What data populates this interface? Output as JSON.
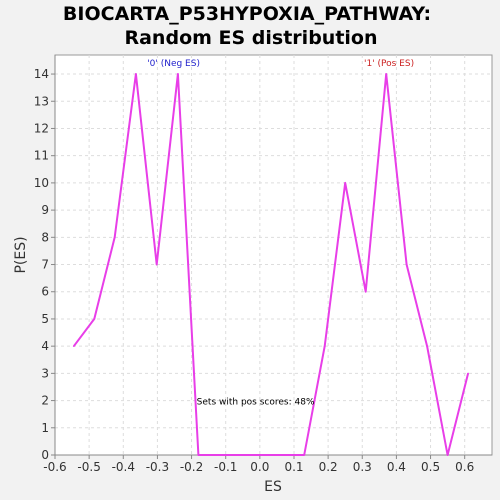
{
  "chart_data": {
    "type": "line",
    "title_line1": "BIOCARTA_P53HYPOXIA_PATHWAY:",
    "title_line2": "Random ES distribution",
    "xlabel": "ES",
    "ylabel": "P(ES)",
    "xlim": [
      -0.6,
      0.68
    ],
    "ylim": [
      0,
      14.7
    ],
    "x_ticks": [
      -0.6,
      -0.5,
      -0.4,
      -0.3,
      -0.2,
      -0.1,
      0.0,
      0.1,
      0.2,
      0.3,
      0.4,
      0.5,
      0.6
    ],
    "x_tick_labels": [
      "-0.6",
      "-0.5",
      "-0.4",
      "-0.3",
      "-0.2",
      "-0.1",
      "0.0",
      "0.1",
      "0.2",
      "0.3",
      "0.4",
      "0.5",
      "0.6"
    ],
    "y_ticks": [
      0,
      1,
      2,
      3,
      4,
      5,
      6,
      7,
      8,
      9,
      10,
      11,
      12,
      13,
      14
    ],
    "y_tick_labels": [
      "0",
      "1",
      "2",
      "3",
      "4",
      "5",
      "6",
      "7",
      "8",
      "9",
      "10",
      "11",
      "12",
      "13",
      "14"
    ],
    "grid": true,
    "series": [
      {
        "color": "#e83ee8",
        "x": [
          -0.545,
          -0.485,
          -0.425,
          -0.363,
          -0.302,
          -0.24,
          -0.18,
          0.13,
          0.19,
          0.25,
          0.31,
          0.37,
          0.43,
          0.49,
          0.55,
          0.61
        ],
        "y": [
          4,
          5,
          8,
          14,
          7,
          14,
          0,
          0,
          4,
          10,
          6,
          14,
          7,
          4,
          0,
          3
        ]
      }
    ],
    "annotations": [
      {
        "text": "'0' (Neg ES)",
        "x": -0.33,
        "y": 14.3,
        "color": "#2222cc"
      },
      {
        "text": "'1' (Pos ES)",
        "x": 0.305,
        "y": 14.3,
        "color": "#cc2222"
      },
      {
        "text": "Sets with pos scores: 48%",
        "x": -0.185,
        "y": 1.85,
        "color": "#000000"
      }
    ]
  }
}
